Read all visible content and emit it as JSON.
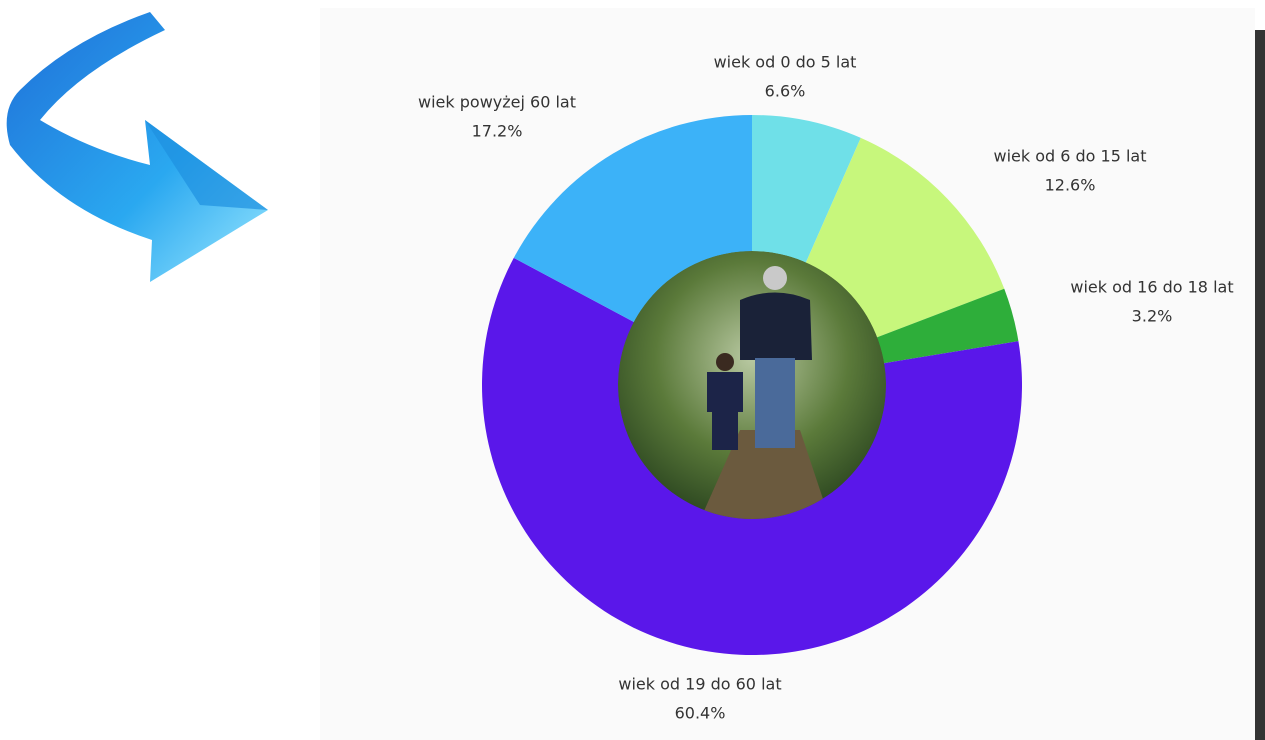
{
  "chart_data": {
    "type": "pie",
    "categories": [
      "wiek od 0 do 5 lat",
      "wiek od 6 do 15 lat",
      "wiek od 16 do 18 lat",
      "wiek od 19 do 60 lat",
      "wiek powyżej 60 lat"
    ],
    "values": [
      6.6,
      12.6,
      3.2,
      60.4,
      17.2
    ],
    "value_labels": [
      "6.6%",
      "12.6%",
      "3.2%",
      "60.4%",
      "17.2%"
    ],
    "colors": [
      "#6fe0e8",
      "#c7f77c",
      "#2eae3a",
      "#5a17ea",
      "#3cb2f8"
    ]
  }
}
